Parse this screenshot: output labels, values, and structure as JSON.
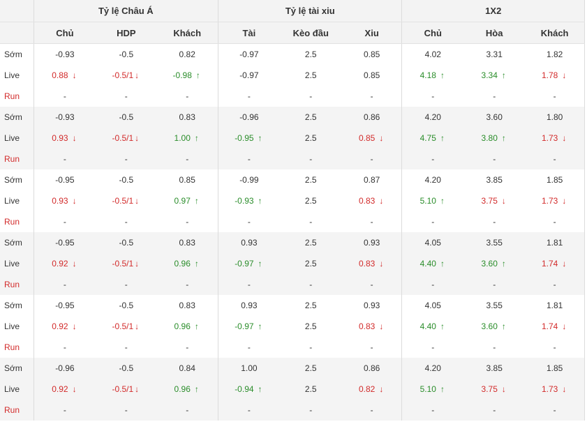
{
  "headers": {
    "group_asian": "Tỷ lệ Châu Á",
    "group_ou": "Tỷ lệ tài xiu",
    "group_1x2": "1X2",
    "cols": [
      "Chủ",
      "HDP",
      "Khách",
      "Tài",
      "Kèo đầu",
      "Xiu",
      "Chủ",
      "Hòa",
      "Khách"
    ]
  },
  "row_labels": {
    "early": "Sớm",
    "live": "Live",
    "run": "Run"
  },
  "dash": "-",
  "colors": {
    "down": "#d22a2a",
    "up": "#2a8d2a",
    "header_bg": "#f3f3f3",
    "alt_row_bg": "#f4f4f4"
  },
  "groups": [
    {
      "early": [
        "-0.93",
        "-0.5",
        "0.82",
        "-0.97",
        "2.5",
        "0.85",
        "4.02",
        "3.31",
        "1.82"
      ],
      "live": [
        {
          "v": "0.88",
          "t": "down"
        },
        {
          "v": "-0.5/1",
          "t": "down"
        },
        {
          "v": "-0.98",
          "t": "up"
        },
        {
          "v": "-0.97",
          "t": ""
        },
        {
          "v": "2.5",
          "t": ""
        },
        {
          "v": "0.85",
          "t": ""
        },
        {
          "v": "4.18",
          "t": "up"
        },
        {
          "v": "3.34",
          "t": "up"
        },
        {
          "v": "1.78",
          "t": "down"
        }
      ]
    },
    {
      "early": [
        "-0.93",
        "-0.5",
        "0.83",
        "-0.96",
        "2.5",
        "0.86",
        "4.20",
        "3.60",
        "1.80"
      ],
      "live": [
        {
          "v": "0.93",
          "t": "down"
        },
        {
          "v": "-0.5/1",
          "t": "down"
        },
        {
          "v": "1.00",
          "t": "up"
        },
        {
          "v": "-0.95",
          "t": "up"
        },
        {
          "v": "2.5",
          "t": ""
        },
        {
          "v": "0.85",
          "t": "down"
        },
        {
          "v": "4.75",
          "t": "up"
        },
        {
          "v": "3.80",
          "t": "up"
        },
        {
          "v": "1.73",
          "t": "down"
        }
      ]
    },
    {
      "early": [
        "-0.95",
        "-0.5",
        "0.85",
        "-0.99",
        "2.5",
        "0.87",
        "4.20",
        "3.85",
        "1.85"
      ],
      "live": [
        {
          "v": "0.93",
          "t": "down"
        },
        {
          "v": "-0.5/1",
          "t": "down"
        },
        {
          "v": "0.97",
          "t": "up"
        },
        {
          "v": "-0.93",
          "t": "up"
        },
        {
          "v": "2.5",
          "t": ""
        },
        {
          "v": "0.83",
          "t": "down"
        },
        {
          "v": "5.10",
          "t": "up"
        },
        {
          "v": "3.75",
          "t": "down"
        },
        {
          "v": "1.73",
          "t": "down"
        }
      ]
    },
    {
      "early": [
        "-0.95",
        "-0.5",
        "0.83",
        "0.93",
        "2.5",
        "0.93",
        "4.05",
        "3.55",
        "1.81"
      ],
      "live": [
        {
          "v": "0.92",
          "t": "down"
        },
        {
          "v": "-0.5/1",
          "t": "down"
        },
        {
          "v": "0.96",
          "t": "up"
        },
        {
          "v": "-0.97",
          "t": "up"
        },
        {
          "v": "2.5",
          "t": ""
        },
        {
          "v": "0.83",
          "t": "down"
        },
        {
          "v": "4.40",
          "t": "up"
        },
        {
          "v": "3.60",
          "t": "up"
        },
        {
          "v": "1.74",
          "t": "down"
        }
      ]
    },
    {
      "early": [
        "-0.95",
        "-0.5",
        "0.83",
        "0.93",
        "2.5",
        "0.93",
        "4.05",
        "3.55",
        "1.81"
      ],
      "live": [
        {
          "v": "0.92",
          "t": "down"
        },
        {
          "v": "-0.5/1",
          "t": "down"
        },
        {
          "v": "0.96",
          "t": "up"
        },
        {
          "v": "-0.97",
          "t": "up"
        },
        {
          "v": "2.5",
          "t": ""
        },
        {
          "v": "0.83",
          "t": "down"
        },
        {
          "v": "4.40",
          "t": "up"
        },
        {
          "v": "3.60",
          "t": "up"
        },
        {
          "v": "1.74",
          "t": "down"
        }
      ]
    },
    {
      "early": [
        "-0.96",
        "-0.5",
        "0.84",
        "1.00",
        "2.5",
        "0.86",
        "4.20",
        "3.85",
        "1.85"
      ],
      "live": [
        {
          "v": "0.92",
          "t": "down"
        },
        {
          "v": "-0.5/1",
          "t": "down"
        },
        {
          "v": "0.96",
          "t": "up"
        },
        {
          "v": "-0.94",
          "t": "up"
        },
        {
          "v": "2.5",
          "t": ""
        },
        {
          "v": "0.82",
          "t": "down"
        },
        {
          "v": "5.10",
          "t": "up"
        },
        {
          "v": "3.75",
          "t": "down"
        },
        {
          "v": "1.73",
          "t": "down"
        }
      ]
    }
  ]
}
